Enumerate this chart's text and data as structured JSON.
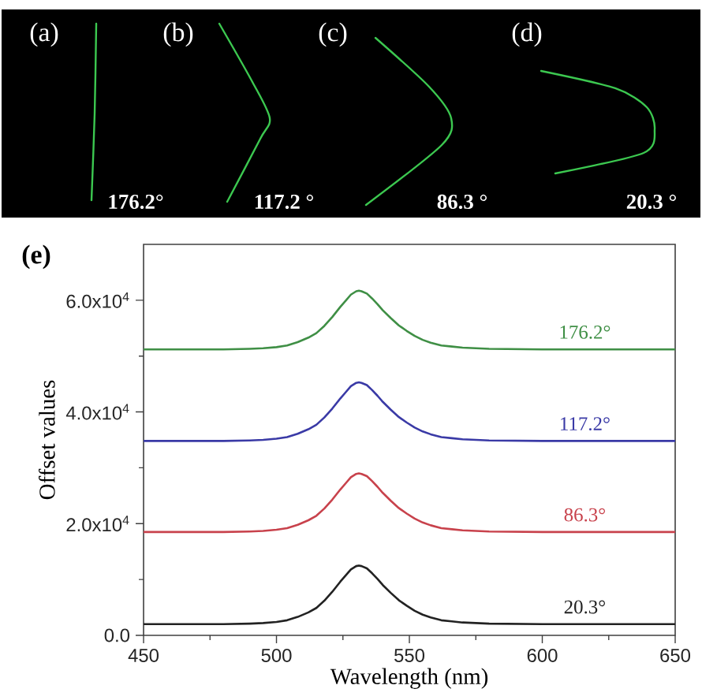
{
  "chart_data": {
    "type": "line",
    "annotations": [
      "(a)",
      "(b)",
      "(c)",
      "(d)",
      "176.2°",
      "117.2 °",
      "86.3 °",
      "20.3 °",
      "(e)"
    ],
    "xlabel": "Wavelength (nm)",
    "ylabel": "Offset values",
    "x": [
      450,
      480,
      490,
      495,
      500,
      504,
      508,
      512,
      515,
      518,
      521,
      524,
      526,
      528,
      530,
      531,
      532,
      534,
      536,
      538,
      540,
      543,
      546,
      549,
      552,
      555,
      558,
      562,
      566,
      570,
      580,
      600,
      620,
      650
    ],
    "series": [
      {
        "name": "176.2°",
        "color": "#3f8f45",
        "values": [
          51200,
          51200,
          51300,
          51400,
          51600,
          51900,
          52500,
          53300,
          54100,
          55400,
          57000,
          58800,
          59900,
          61000,
          61600,
          61700,
          61600,
          61200,
          60300,
          59300,
          58200,
          56800,
          55500,
          54500,
          53600,
          52900,
          52400,
          51900,
          51700,
          51500,
          51300,
          51200,
          51200,
          51200
        ]
      },
      {
        "name": "117.2°",
        "color": "#3a3aa6",
        "values": [
          34800,
          34800,
          34900,
          35000,
          35200,
          35500,
          36100,
          36900,
          37700,
          39000,
          40600,
          42400,
          43500,
          44600,
          45200,
          45300,
          45200,
          44800,
          43900,
          42900,
          41800,
          40400,
          39100,
          38100,
          37200,
          36500,
          36000,
          35500,
          35300,
          35100,
          34900,
          34800,
          34800,
          34800
        ]
      },
      {
        "name": "86.3°",
        "color": "#c8424c",
        "values": [
          18500,
          18500,
          18600,
          18700,
          18900,
          19200,
          19800,
          20600,
          21400,
          22700,
          24300,
          26100,
          27200,
          28300,
          28900,
          29000,
          28900,
          28500,
          27600,
          26600,
          25500,
          24100,
          22800,
          21800,
          20900,
          20200,
          19700,
          19200,
          19000,
          18800,
          18600,
          18500,
          18500,
          18500
        ]
      },
      {
        "name": "20.3°",
        "color": "#222222",
        "values": [
          2000,
          2000,
          2100,
          2200,
          2400,
          2700,
          3300,
          4100,
          4900,
          6200,
          7800,
          9600,
          10700,
          11800,
          12400,
          12500,
          12400,
          12000,
          11100,
          10100,
          9000,
          7600,
          6300,
          5300,
          4400,
          3700,
          3200,
          2700,
          2500,
          2300,
          2100,
          2000,
          2000,
          2000
        ]
      }
    ],
    "xlim": [
      450,
      650
    ],
    "ylim": [
      0,
      70000
    ],
    "xticks": [
      450,
      {
        "value": 475,
        "label": null
      },
      500,
      {
        "value": 525,
        "label": null
      },
      550,
      {
        "value": 575,
        "label": null
      },
      600,
      {
        "value": 625,
        "label": null
      },
      650
    ],
    "yticks": [
      {
        "value": 0,
        "label": "0.0"
      },
      {
        "value": 10000,
        "label": null
      },
      {
        "value": 20000,
        "label": "2.0x10$^{4}$"
      },
      {
        "value": 30000,
        "label": null
      },
      {
        "value": 40000,
        "label": "4.0x10$^{4}$"
      },
      {
        "value": 50000,
        "label": null
      },
      {
        "value": 60000,
        "label": "6.0x10$^{4}$"
      }
    ],
    "grid": false,
    "legend": false,
    "marker": "none",
    "line_style": "solid"
  }
}
